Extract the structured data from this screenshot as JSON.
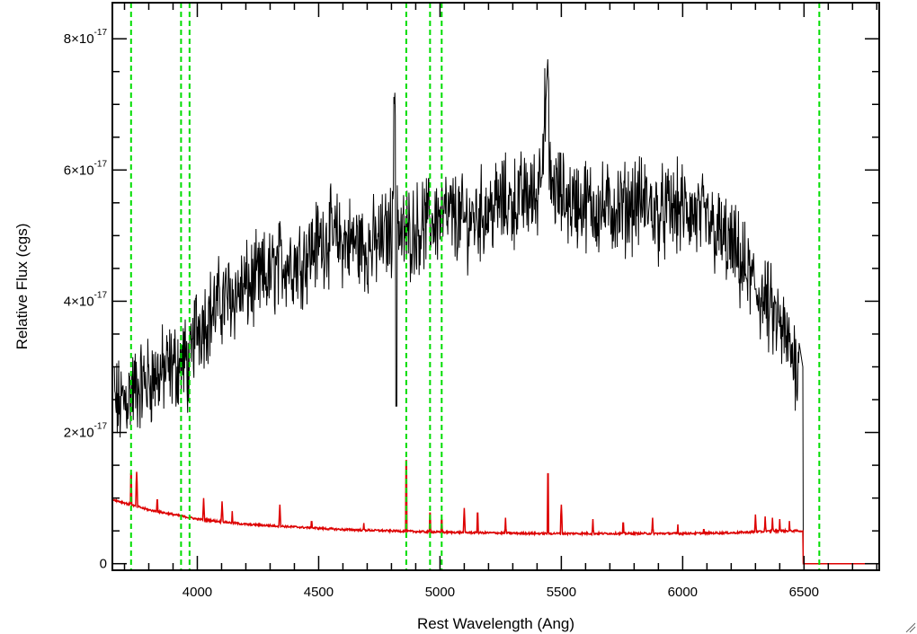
{
  "chart_data": {
    "type": "line",
    "title": "",
    "xlabel": "Rest Wavelength (Ang)",
    "ylabel": "Relative Flux (cgs)",
    "xlim": [
      3650,
      6810
    ],
    "ylim": [
      -1e-18,
      8.55e-17
    ],
    "x_ticks": [
      {
        "value": 4000,
        "label": "4000"
      },
      {
        "value": 4500,
        "label": "4500"
      },
      {
        "value": 5000,
        "label": "5000"
      },
      {
        "value": 5500,
        "label": "5500"
      },
      {
        "value": 6000,
        "label": "6000"
      },
      {
        "value": 6500,
        "label": "6500"
      }
    ],
    "y_ticks": [
      {
        "value": 0,
        "label": "0",
        "exp": ""
      },
      {
        "value": 2e-17,
        "label": "2×10",
        "exp": "-17"
      },
      {
        "value": 4e-17,
        "label": "4×10",
        "exp": "-17"
      },
      {
        "value": 6e-17,
        "label": "6×10",
        "exp": "-17"
      },
      {
        "value": 8e-17,
        "label": "8×10",
        "exp": "-17"
      }
    ],
    "grid": false,
    "colors": {
      "spectrum": "#000000",
      "model": "#dd0000",
      "markers": "#00dd00"
    },
    "vertical_markers": [
      3727,
      3933,
      3968,
      4861,
      4959,
      5007,
      6563
    ],
    "series": [
      {
        "color": "#000000",
        "style": "noisy spectrum",
        "x": [
          3650,
          3680,
          3720,
          3760,
          3800,
          3850,
          3900,
          3950,
          3970,
          3990,
          4050,
          4100,
          4150,
          4200,
          4250,
          4300,
          4350,
          4400,
          4450,
          4500,
          4550,
          4600,
          4650,
          4700,
          4750,
          4800,
          4815,
          4830,
          4850,
          4900,
          4950,
          5000,
          5050,
          5100,
          5150,
          5200,
          5250,
          5300,
          5350,
          5400,
          5445,
          5450,
          5500,
          5550,
          5600,
          5650,
          5700,
          5750,
          5800,
          5850,
          5900,
          5950,
          6000,
          6050,
          6100,
          6150,
          6200,
          6250,
          6300,
          6350,
          6400,
          6450,
          6480,
          6495
        ],
        "y": [
          2.5e-17,
          2.4e-17,
          2.6e-17,
          2.7e-17,
          2.8e-17,
          2.9e-17,
          3e-17,
          3.1e-17,
          2.9e-17,
          3.6e-17,
          3.8e-17,
          4e-17,
          4.1e-17,
          4.2e-17,
          4.3e-17,
          4.4e-17,
          4.6e-17,
          4.6e-17,
          4.7e-17,
          4.9e-17,
          5e-17,
          4.9e-17,
          4.9e-17,
          4.8e-17,
          4.9e-17,
          5.1e-17,
          7e-17,
          5e-17,
          5e-17,
          5.1e-17,
          5.2e-17,
          5.3e-17,
          5.3e-17,
          5.2e-17,
          5.3e-17,
          5.4e-17,
          5.5e-17,
          5.5e-17,
          5.6e-17,
          5.6e-17,
          7.3e-17,
          5.8e-17,
          5.6e-17,
          5.5e-17,
          5.5e-17,
          5.4e-17,
          5.4e-17,
          5.4e-17,
          5.5e-17,
          5.5e-17,
          5.3e-17,
          5.4e-17,
          5.4e-17,
          5.3e-17,
          5.2e-17,
          5e-17,
          4.8e-17,
          4.5e-17,
          4.2e-17,
          3.9e-17,
          3.6e-17,
          3.2e-17,
          3e-17,
          0.0
        ]
      },
      {
        "color": "#dd0000",
        "style": "model continuum",
        "x": [
          3650,
          3800,
          4000,
          4200,
          4400,
          4600,
          4800,
          5000,
          5200,
          5400,
          5600,
          5800,
          6000,
          6200,
          6400,
          6490,
          6500,
          6810
        ],
        "y": [
          9.8e-18,
          8.2e-18,
          6.8e-18,
          6e-18,
          5.6e-18,
          5.2e-18,
          5e-18,
          4.8e-18,
          4.7e-18,
          4.6e-18,
          4.6e-18,
          4.6e-18,
          4.6e-18,
          4.7e-18,
          5e-18,
          5e-18,
          0.0,
          0.0
        ]
      }
    ],
    "model_emission_lines": [
      {
        "x": 3727,
        "y": 1.45e-17
      },
      {
        "x": 3750,
        "y": 1.4e-17
      },
      {
        "x": 3835,
        "y": 1.05e-17
      },
      {
        "x": 4026,
        "y": 1e-17
      },
      {
        "x": 4102,
        "y": 9.5e-18
      },
      {
        "x": 4144,
        "y": 8e-18
      },
      {
        "x": 4340,
        "y": 9e-18
      },
      {
        "x": 4471,
        "y": 7.2e-18
      },
      {
        "x": 4686,
        "y": 6.2e-18
      },
      {
        "x": 4861,
        "y": 1.65e-17
      },
      {
        "x": 4959,
        "y": 8.5e-18
      },
      {
        "x": 5007,
        "y": 7.5e-18
      },
      {
        "x": 5100,
        "y": 8.5e-18
      },
      {
        "x": 5155,
        "y": 8.5e-18
      },
      {
        "x": 5270,
        "y": 7e-18
      },
      {
        "x": 5445,
        "y": 1.45e-17
      },
      {
        "x": 5500,
        "y": 9e-18
      },
      {
        "x": 5630,
        "y": 6.8e-18
      },
      {
        "x": 5755,
        "y": 7e-18
      },
      {
        "x": 5876,
        "y": 7e-18
      },
      {
        "x": 5980,
        "y": 6e-18
      },
      {
        "x": 6087,
        "y": 6e-18
      },
      {
        "x": 6300,
        "y": 7.5e-18
      },
      {
        "x": 6340,
        "y": 7.2e-18
      },
      {
        "x": 6370,
        "y": 7e-18
      },
      {
        "x": 6400,
        "y": 6.8e-18
      },
      {
        "x": 6440,
        "y": 6.5e-18
      }
    ]
  }
}
